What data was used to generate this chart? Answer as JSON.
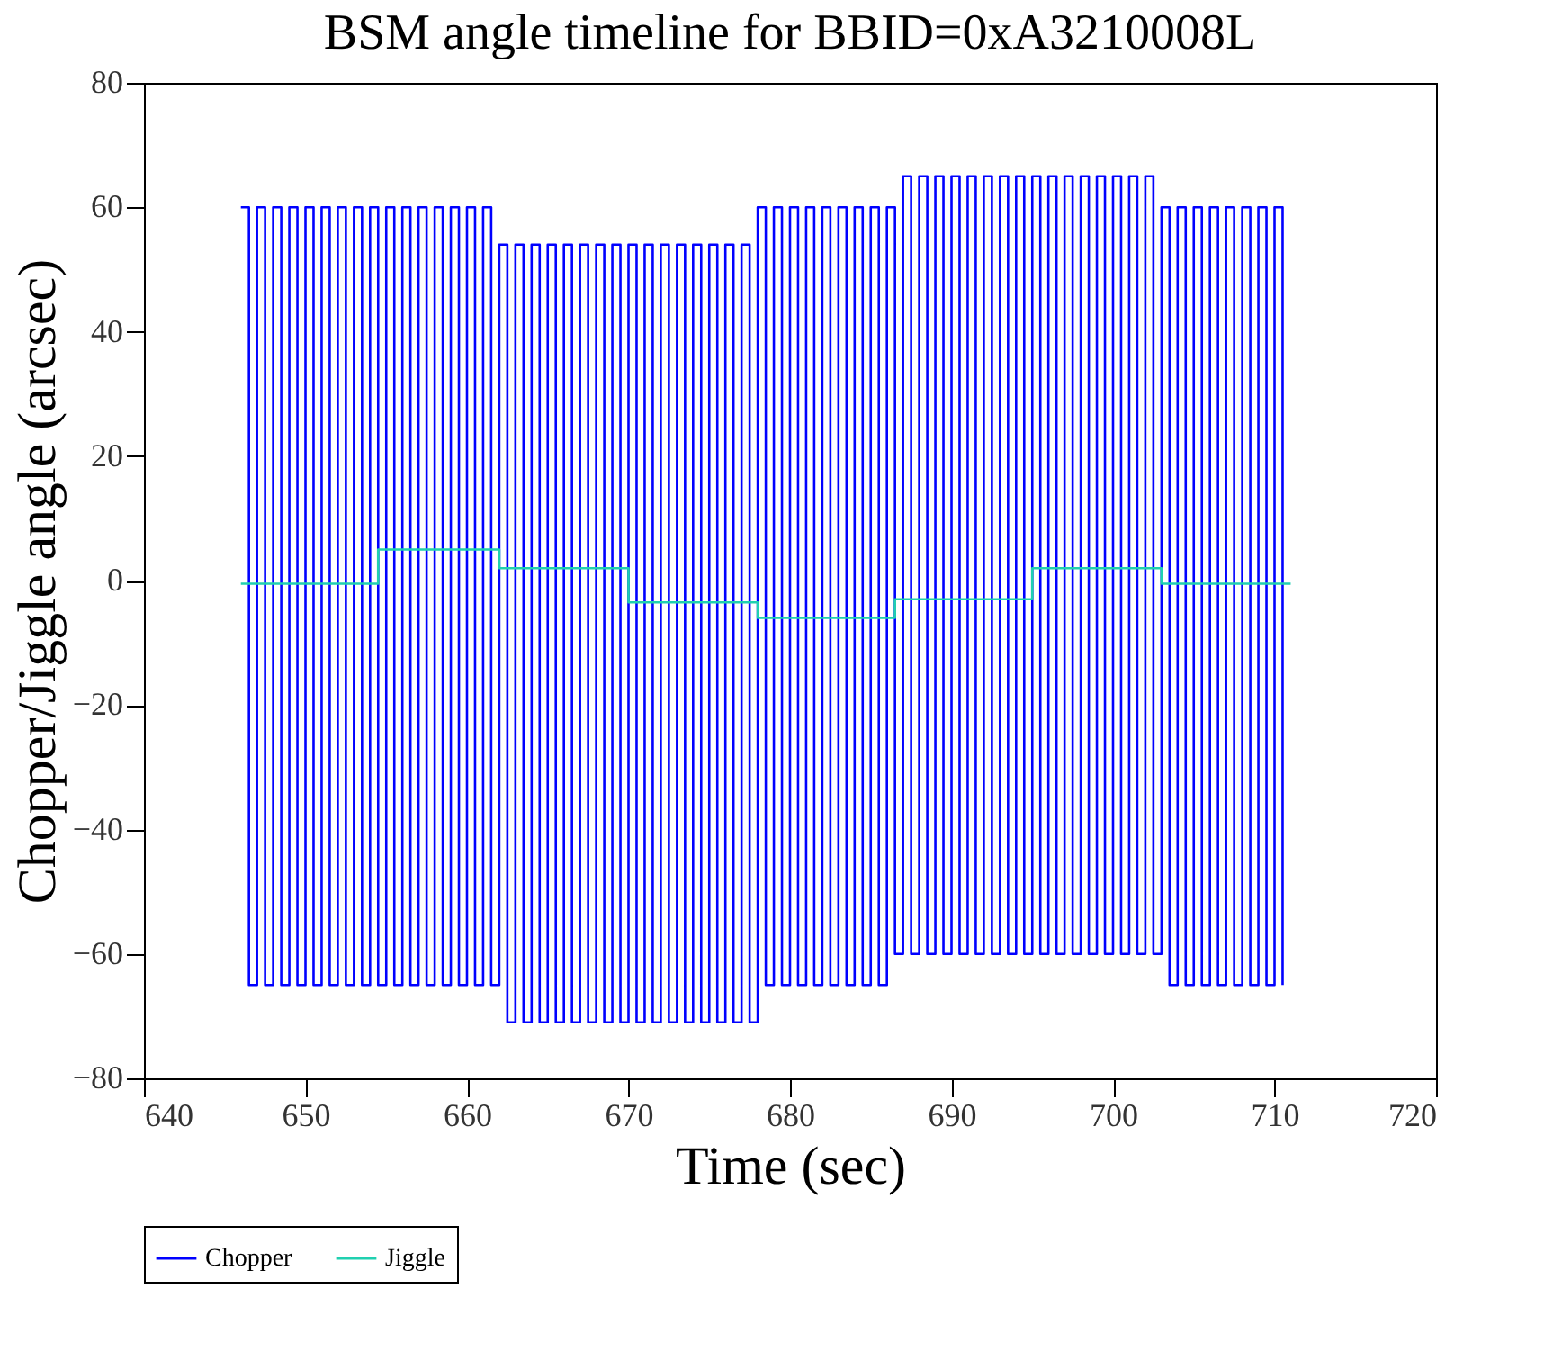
{
  "chart_data": {
    "type": "line",
    "title": "BSM angle timeline for BBID=0xA3210008L",
    "xlabel": "Time (sec)",
    "ylabel": "Chopper/Jiggle angle (arcsec)",
    "xlim": [
      640,
      720
    ],
    "xticks": [
      640,
      650,
      660,
      670,
      680,
      690,
      700,
      710,
      720
    ],
    "ylim": [
      -80,
      80
    ],
    "yticks": [
      -80,
      -60,
      -40,
      -20,
      0,
      20,
      40,
      60,
      80
    ],
    "grid": false,
    "legend": "bottom",
    "line_style": "solid",
    "marker": "none",
    "series": [
      {
        "name": "Chopper",
        "color": "#0000ff",
        "type": "step",
        "x": [
          646,
          646.5,
          647,
          647.5,
          648,
          648.5,
          649,
          649.5,
          650,
          650.5,
          651,
          651.5,
          652,
          652.5,
          653,
          653.5,
          654,
          654.5,
          655,
          655.5,
          656,
          656.5,
          657,
          657.5,
          658,
          658.5,
          659,
          659.5,
          660,
          660.5,
          661,
          661.5,
          662,
          662.5,
          663,
          663.5,
          664,
          664.5,
          665,
          665.5,
          666,
          666.5,
          667,
          667.5,
          668,
          668.5,
          669,
          669.5,
          670,
          670.5,
          671,
          671.5,
          672,
          672.5,
          673,
          673.5,
          674,
          674.5,
          675,
          675.5,
          676,
          676.5,
          677,
          677.5,
          678,
          678.5,
          679,
          679.5,
          680,
          680.5,
          681,
          681.5,
          682,
          682.5,
          683,
          683.5,
          684,
          684.5,
          685,
          685.5,
          686,
          686.5,
          687,
          687.5,
          688,
          688.5,
          689,
          689.5,
          690,
          690.5,
          691,
          691.5,
          692,
          692.5,
          693,
          693.5,
          694,
          694.5,
          695,
          695.5,
          696,
          696.5,
          697,
          697.5,
          698,
          698.5,
          699,
          699.5,
          700,
          700.5,
          701,
          701.5,
          702,
          702.5,
          703,
          703.5,
          704,
          704.5,
          705,
          705.5,
          706,
          706.5,
          707,
          707.5,
          708,
          708.5,
          709,
          709.5,
          710,
          710.5
        ],
        "values": [
          60,
          -65,
          60,
          -65,
          60,
          -65,
          60,
          -65,
          60,
          -65,
          60,
          -65,
          60,
          -65,
          60,
          -65,
          60,
          -65,
          60,
          -65,
          60,
          -65,
          60,
          -65,
          60,
          -65,
          60,
          -65,
          60,
          -65,
          60,
          -65,
          54,
          -71,
          54,
          -71,
          54,
          -71,
          54,
          -71,
          54,
          -71,
          54,
          -71,
          54,
          -71,
          54,
          -71,
          54,
          -71,
          54,
          -71,
          54,
          -71,
          54,
          -71,
          54,
          -71,
          54,
          -71,
          54,
          -71,
          54,
          -71,
          60,
          -65,
          60,
          -65,
          60,
          -65,
          60,
          -65,
          60,
          -65,
          60,
          -65,
          60,
          -65,
          60,
          -65,
          60,
          -60,
          65,
          -60,
          65,
          -60,
          65,
          -60,
          65,
          -60,
          65,
          -60,
          65,
          -60,
          65,
          -60,
          65,
          -60,
          65,
          -60,
          65,
          -60,
          65,
          -60,
          65,
          -60,
          65,
          -60,
          65,
          -60,
          65,
          -60,
          65,
          -60,
          60,
          -65,
          60,
          -65,
          60,
          -65,
          60,
          -65,
          60,
          -65,
          60,
          -65,
          60,
          -65,
          60,
          -65
        ]
      },
      {
        "name": "Jiggle",
        "color": "#20d0b0",
        "type": "step",
        "x": [
          646,
          654.5,
          662,
          670,
          678,
          686.5,
          695,
          703,
          711
        ],
        "values": [
          -0.5,
          5,
          2,
          -3.5,
          -6,
          -3,
          2,
          -0.5,
          -0.5
        ]
      }
    ]
  }
}
